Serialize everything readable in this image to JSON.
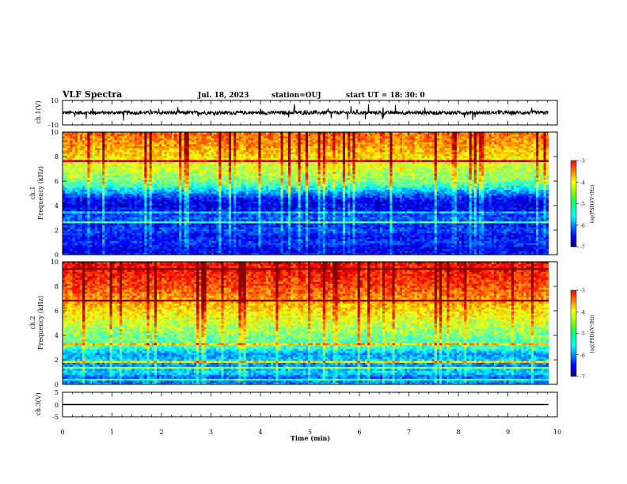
{
  "header": {
    "title": "VLF Spectra",
    "date": "Jul. 18, 2023",
    "station": "station=OUJ",
    "start": "start UT =  18: 30: 0"
  },
  "chart_data": [
    {
      "type": "line",
      "panel": "waveform-ch1",
      "ylabel": "ch.1(V)",
      "ylim": [
        -10,
        10
      ],
      "yticks": [
        "10",
        "-10"
      ],
      "xlim": [
        0,
        10
      ],
      "baseline": 0,
      "noise_amplitude": 1.5,
      "spike_amplitude": 6
    },
    {
      "type": "heatmap",
      "panel": "spectrogram-ch1",
      "ylabel_top": "ch.1",
      "ylabel": "Frequency (kHz)",
      "ylim": [
        0,
        10
      ],
      "yticks": [
        "0",
        "2",
        "4",
        "6",
        "8",
        "10"
      ],
      "xlim": [
        0,
        9.82
      ],
      "colorbar": {
        "label": "log(PSD)(V²/Hz)",
        "range": [
          -7,
          -3
        ],
        "ticks": [
          "-3",
          "-4",
          "-5",
          "-6",
          "-7"
        ]
      },
      "level_profile": [
        [
          0,
          -6.4
        ],
        [
          0.5,
          -6.6
        ],
        [
          1,
          -6.3
        ],
        [
          1.5,
          -6.5
        ],
        [
          2,
          -6.2
        ],
        [
          2.5,
          -6.4
        ],
        [
          3,
          -6.1
        ],
        [
          3.5,
          -6.4
        ],
        [
          4,
          -6.6
        ],
        [
          4.5,
          -6.5
        ],
        [
          5,
          -6.0
        ],
        [
          5.5,
          -5.4
        ],
        [
          6,
          -5.0
        ],
        [
          7,
          -4.7
        ],
        [
          8,
          -4.4
        ],
        [
          9,
          -4.1
        ],
        [
          10,
          -3.9
        ]
      ]
    },
    {
      "type": "heatmap",
      "panel": "spectrogram-ch2",
      "ylabel_top": "ch.2",
      "ylabel": "Frequency (kHz)",
      "ylim": [
        0,
        10
      ],
      "yticks": [
        "0",
        "2",
        "4",
        "6",
        "8",
        "10"
      ],
      "xlim": [
        0,
        9.82
      ],
      "colorbar": {
        "label": "log(PSD)(V²/Hz)",
        "range": [
          -7,
          -3
        ],
        "ticks": [
          "-3",
          "-4",
          "-5",
          "-6",
          "-7"
        ]
      },
      "level_profile": [
        [
          0,
          -5.8
        ],
        [
          0.5,
          -6.2
        ],
        [
          1,
          -5.6
        ],
        [
          1.5,
          -6.0
        ],
        [
          2,
          -5.7
        ],
        [
          2.5,
          -5.9
        ],
        [
          3,
          -5.3
        ],
        [
          4,
          -5.0
        ],
        [
          5,
          -4.7
        ],
        [
          6,
          -4.4
        ],
        [
          7,
          -4.1
        ],
        [
          8,
          -3.8
        ],
        [
          9,
          -3.6
        ],
        [
          10,
          -3.5
        ]
      ]
    },
    {
      "type": "line",
      "panel": "waveform-ch3",
      "ylabel": "ch.3(V)",
      "ylim": [
        -5,
        5
      ],
      "yticks": [
        "5",
        "0",
        "-5"
      ],
      "xlim": [
        0,
        10
      ],
      "baseline": 0
    }
  ],
  "xaxis": {
    "label": "Time (min)",
    "ticks": [
      "0",
      "1",
      "2",
      "3",
      "4",
      "5",
      "6",
      "7",
      "8",
      "9",
      "10"
    ]
  }
}
